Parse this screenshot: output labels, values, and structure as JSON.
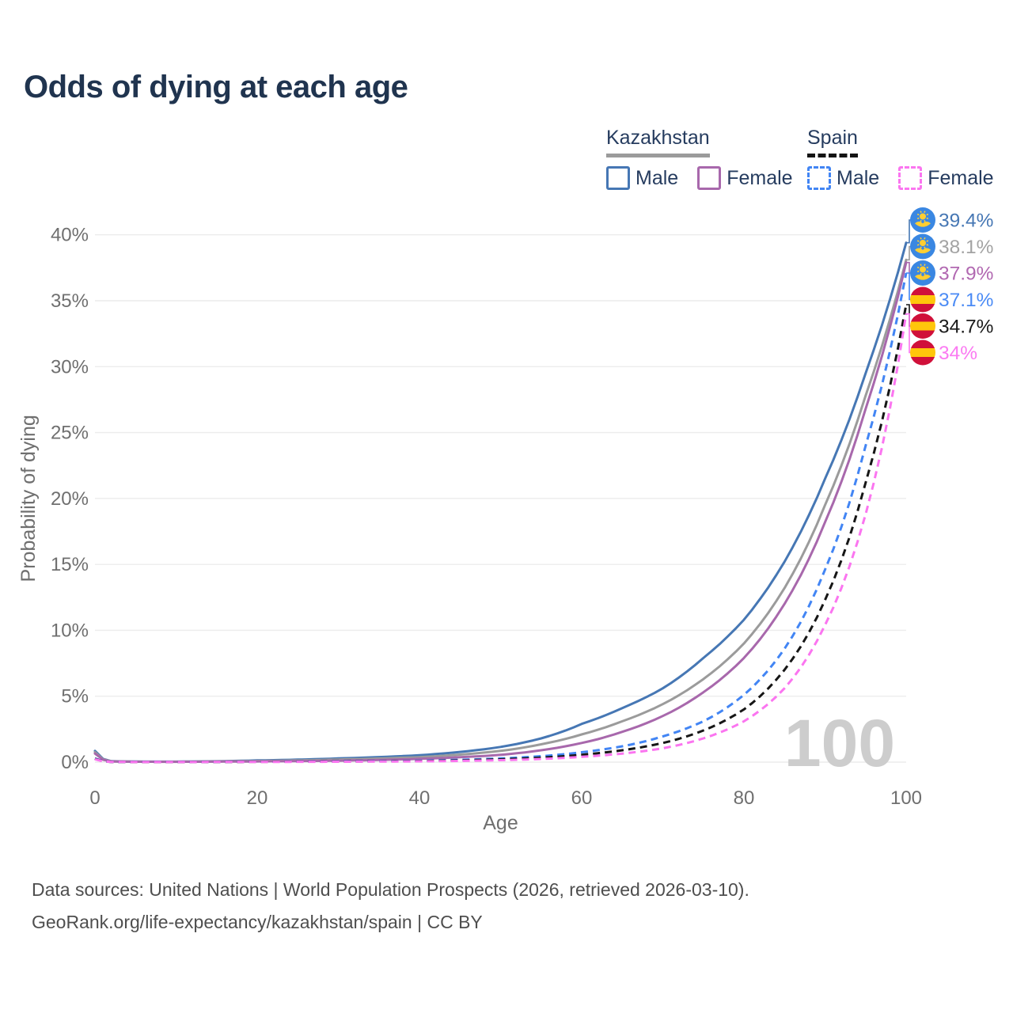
{
  "page": {
    "title": "Odds of dying at each age"
  },
  "legend": {
    "groups": [
      {
        "label": "Kazakhstan",
        "line": "solid",
        "underline_color": "#9b9b9b",
        "items": [
          {
            "label": "Male",
            "color": "#4677b4",
            "line": "solid"
          },
          {
            "label": "Female",
            "color": "#a868ac",
            "line": "solid"
          }
        ]
      },
      {
        "label": "Spain",
        "line": "dashed",
        "underline_color": "#141414",
        "items": [
          {
            "label": "Male",
            "color": "#4285f4",
            "line": "dashed"
          },
          {
            "label": "Female",
            "color": "#fb75f0",
            "line": "dashed"
          }
        ]
      }
    ]
  },
  "chart_data": {
    "type": "line",
    "title": "Odds of dying at each age",
    "xlabel": "Age",
    "ylabel": "Probability of dying",
    "xlim": [
      0,
      100
    ],
    "ylim_pct": [
      0,
      41.5
    ],
    "x_ticks": [
      0,
      20,
      40,
      60,
      80,
      100
    ],
    "y_ticks_pct": [
      0,
      5,
      10,
      15,
      20,
      25,
      30,
      35,
      40
    ],
    "grid": true,
    "age_watermark": "100",
    "grid_color": "#ececec",
    "tick_color": "#6f6f6f",
    "watermark_color": "#cdcdcd",
    "series": [
      {
        "name": "Kazakhstan Male",
        "country": "Kazakhstan",
        "sex": "Male",
        "flag": "kz",
        "line": "solid",
        "color": "#4677b4",
        "label_color": "#4677b4",
        "end_label": "39.4%",
        "ages": [
          0,
          2,
          5,
          10,
          20,
          30,
          40,
          50,
          55,
          60,
          65,
          70,
          75,
          80,
          85,
          90,
          95,
          100
        ],
        "values_pct": [
          0.85,
          0.07,
          0.04,
          0.035,
          0.13,
          0.28,
          0.52,
          1.15,
          1.8,
          2.9,
          4.1,
          5.6,
          7.9,
          10.8,
          15.2,
          21.5,
          29.5,
          39.4
        ]
      },
      {
        "name": "Kazakhstan Both sexes",
        "country": "Kazakhstan",
        "sex": "Both",
        "flag": "kz",
        "line": "solid",
        "color": "#9b9b9b",
        "label_color": "#a3a3a3",
        "end_label": "38.1%",
        "ages": [
          0,
          2,
          5,
          10,
          20,
          30,
          40,
          50,
          55,
          60,
          65,
          70,
          75,
          80,
          85,
          90,
          95,
          100
        ],
        "values_pct": [
          0.75,
          0.06,
          0.035,
          0.03,
          0.09,
          0.2,
          0.38,
          0.85,
          1.35,
          2.1,
          3.1,
          4.4,
          6.3,
          9.0,
          13.2,
          19.5,
          27.8,
          38.1
        ]
      },
      {
        "name": "Kazakhstan Female",
        "country": "Kazakhstan",
        "sex": "Female",
        "flag": "kz",
        "line": "solid",
        "color": "#a868ac",
        "label_color": "#b168b1",
        "end_label": "37.9%",
        "ages": [
          0,
          2,
          5,
          10,
          20,
          30,
          40,
          50,
          55,
          60,
          65,
          70,
          75,
          80,
          85,
          90,
          95,
          100
        ],
        "values_pct": [
          0.65,
          0.05,
          0.03,
          0.025,
          0.055,
          0.11,
          0.25,
          0.55,
          0.9,
          1.45,
          2.3,
          3.5,
          5.3,
          7.9,
          12.0,
          18.2,
          26.8,
          37.9
        ]
      },
      {
        "name": "Spain Male",
        "country": "Spain",
        "sex": "Male",
        "flag": "es",
        "line": "dashed",
        "color": "#4285f4",
        "label_color": "#4b8bf5",
        "end_label": "37.1%",
        "ages": [
          0,
          2,
          5,
          10,
          20,
          30,
          40,
          50,
          55,
          60,
          65,
          70,
          75,
          80,
          85,
          90,
          95,
          100
        ],
        "values_pct": [
          0.28,
          0.016,
          0.01,
          0.009,
          0.035,
          0.06,
          0.11,
          0.28,
          0.45,
          0.75,
          1.2,
          1.95,
          3.1,
          5.1,
          8.6,
          14.6,
          24.0,
          37.1
        ]
      },
      {
        "name": "Spain Both sexes",
        "country": "Spain",
        "sex": "Both",
        "flag": "es",
        "line": "dashed",
        "color": "#161616",
        "label_color": "#1a1a1a",
        "end_label": "34.7%",
        "ages": [
          0,
          2,
          5,
          10,
          20,
          30,
          40,
          50,
          55,
          60,
          65,
          70,
          75,
          80,
          85,
          90,
          95,
          100
        ],
        "values_pct": [
          0.25,
          0.014,
          0.009,
          0.008,
          0.025,
          0.045,
          0.085,
          0.21,
          0.34,
          0.56,
          0.9,
          1.45,
          2.4,
          4.0,
          7.0,
          12.3,
          21.2,
          34.7
        ]
      },
      {
        "name": "Spain Female",
        "country": "Spain",
        "sex": "Female",
        "flag": "es",
        "line": "dashed",
        "color": "#fb75f0",
        "label_color": "#fb7af2",
        "end_label": "34%",
        "ages": [
          0,
          2,
          5,
          10,
          20,
          30,
          40,
          50,
          55,
          60,
          65,
          70,
          75,
          80,
          85,
          90,
          95,
          100
        ],
        "values_pct": [
          0.22,
          0.013,
          0.008,
          0.007,
          0.016,
          0.03,
          0.06,
          0.15,
          0.24,
          0.4,
          0.65,
          1.05,
          1.8,
          3.1,
          5.6,
          10.4,
          18.8,
          34.0
        ]
      }
    ],
    "flag_colors": {
      "kz_blue": "#3a87e2",
      "kz_gold": "#ffce31",
      "es_red": "#d0103a",
      "es_yellow": "#ffc60b"
    }
  },
  "footer": {
    "line1": "Data sources: United Nations | World Population Prospects (2026, retrieved 2026-03-10).",
    "line2": "GeoRank.org/life-expectancy/kazakhstan/spain | CC BY"
  }
}
